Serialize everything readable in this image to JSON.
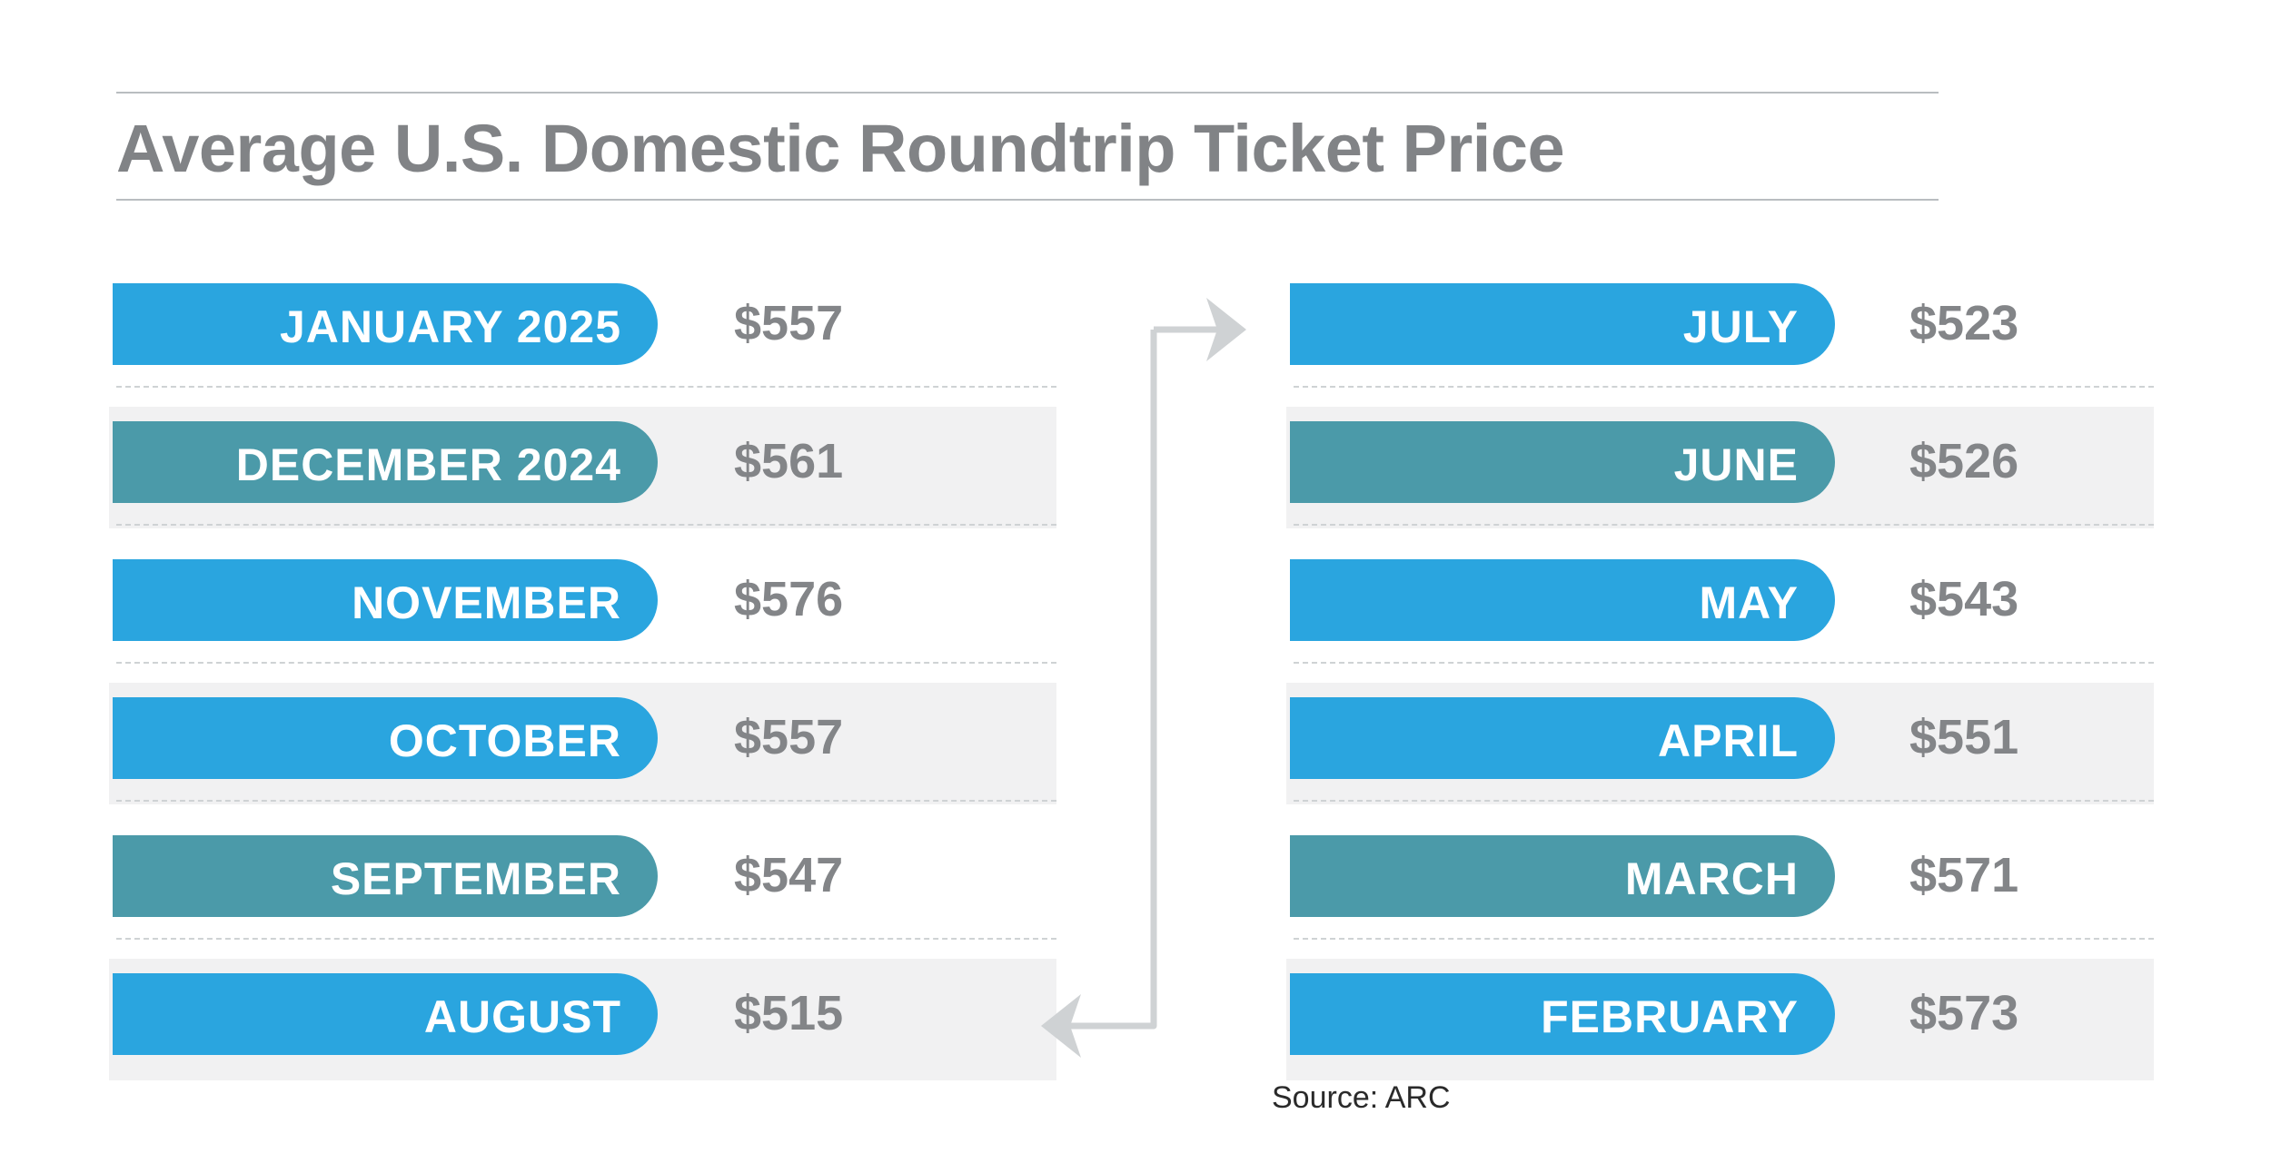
{
  "title": "Average U.S. Domestic Roundtrip Ticket Price",
  "source": "Source: ARC",
  "colors": {
    "blue": "#2aa5df",
    "teal": "#4b9aa9",
    "price_text": "#838588",
    "title_text": "#818386",
    "arrow": "#cfd2d4"
  },
  "chart_data": {
    "type": "table",
    "title": "Average U.S. Domestic Roundtrip Ticket Price",
    "unit": "$",
    "left_column": [
      {
        "month": "JANUARY 2025",
        "price": "$557",
        "value": 557,
        "color": "blue",
        "shaded": false
      },
      {
        "month": "DECEMBER 2024",
        "price": "$561",
        "value": 561,
        "color": "teal",
        "shaded": true
      },
      {
        "month": "NOVEMBER",
        "price": "$576",
        "value": 576,
        "color": "blue",
        "shaded": false
      },
      {
        "month": "OCTOBER",
        "price": "$557",
        "value": 557,
        "color": "blue",
        "shaded": true
      },
      {
        "month": "SEPTEMBER",
        "price": "$547",
        "value": 547,
        "color": "teal",
        "shaded": false
      },
      {
        "month": "AUGUST",
        "price": "$515",
        "value": 515,
        "color": "blue",
        "shaded": true
      }
    ],
    "right_column": [
      {
        "month": "JULY",
        "price": "$523",
        "value": 523,
        "color": "blue",
        "shaded": false
      },
      {
        "month": "JUNE",
        "price": "$526",
        "value": 526,
        "color": "teal",
        "shaded": true
      },
      {
        "month": "MAY",
        "price": "$543",
        "value": 543,
        "color": "blue",
        "shaded": false
      },
      {
        "month": "APRIL",
        "price": "$551",
        "value": 551,
        "color": "blue",
        "shaded": true
      },
      {
        "month": "MARCH",
        "price": "$571",
        "value": 571,
        "color": "teal",
        "shaded": false
      },
      {
        "month": "FEBRUARY",
        "price": "$573",
        "value": 573,
        "color": "blue",
        "shaded": true
      }
    ]
  }
}
